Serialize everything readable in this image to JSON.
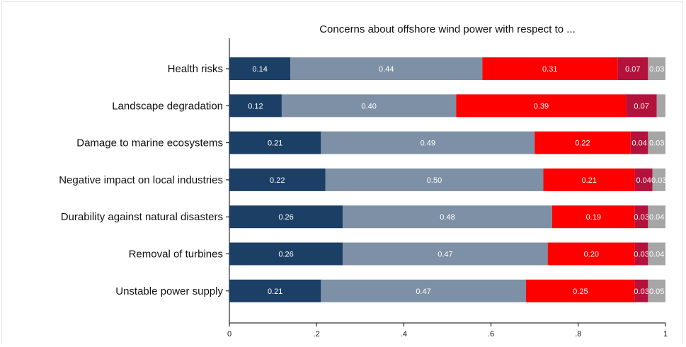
{
  "chart_data": {
    "type": "bar",
    "orientation": "horizontal",
    "stacked": true,
    "title": "Concerns about offshore wind power with respect to ...",
    "xlabel": "",
    "ylabel": "",
    "xlim": [
      0,
      1
    ],
    "x_ticks": [
      "0",
      ".2",
      ".4",
      ".6",
      ".8",
      "1"
    ],
    "x_tick_values": [
      0,
      0.2,
      0.4,
      0.6,
      0.8,
      1.0
    ],
    "legend": "none",
    "categories": [
      "Health risks",
      "Landscape degradation",
      "Damage to marine ecosystems",
      "Negative impact on local industries",
      "Durability against natural disasters",
      "Removal of turbines",
      "Unstable power supply"
    ],
    "colors": [
      "#1c3f66",
      "#7d90a6",
      "#fe0000",
      "#b3123c",
      "#a6a6a6"
    ],
    "series": [
      {
        "values": [
          0.14,
          0.12,
          0.21,
          0.22,
          0.26,
          0.26,
          0.21
        ],
        "labels": [
          "0.14",
          "0.12",
          "0.21",
          "0.22",
          "0.26",
          "0.26",
          "0.21"
        ]
      },
      {
        "values": [
          0.44,
          0.4,
          0.49,
          0.5,
          0.48,
          0.47,
          0.47
        ],
        "labels": [
          "0.44",
          "0.40",
          "0.49",
          "0.50",
          "0.48",
          "0.47",
          "0.47"
        ]
      },
      {
        "values": [
          0.31,
          0.39,
          0.22,
          0.21,
          0.19,
          0.2,
          0.25
        ],
        "labels": [
          "0.31",
          "0.39",
          "0.22",
          "0.21",
          "0.19",
          "0.20",
          "0.25"
        ]
      },
      {
        "values": [
          0.07,
          0.07,
          0.04,
          0.04,
          0.03,
          0.03,
          0.03
        ],
        "labels": [
          "0.07",
          "0.07",
          "0.04",
          "0.04",
          "0.03",
          "0.03",
          "0.03"
        ]
      },
      {
        "values": [
          0.03,
          0.02,
          0.03,
          0.03,
          0.04,
          0.04,
          0.05
        ],
        "labels": [
          "0.03",
          "0.0",
          "0.03",
          "0.03",
          "0.04",
          "0.04",
          "0.05"
        ]
      }
    ]
  }
}
